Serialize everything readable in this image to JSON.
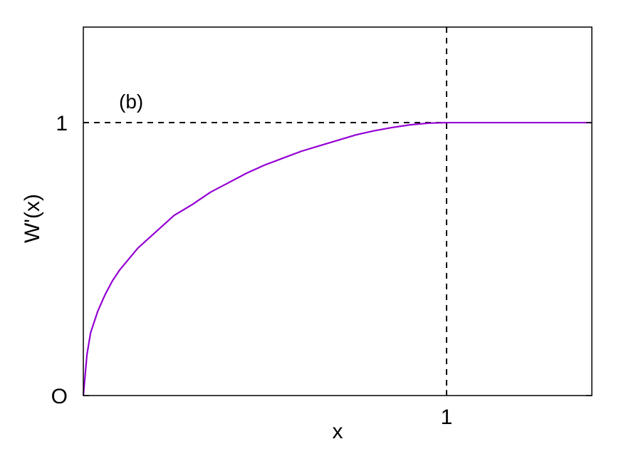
{
  "chart_data": {
    "type": "line",
    "title": "",
    "xlabel": "x",
    "ylabel": "W'(x)",
    "xlim": [
      0,
      1.4
    ],
    "ylim": [
      0,
      1.35
    ],
    "x_ticks": [
      {
        "value": 1,
        "label": "1"
      }
    ],
    "y_ticks": [
      {
        "value": 0,
        "label": "O"
      },
      {
        "value": 1,
        "label": "1"
      }
    ],
    "annotation": "(b)",
    "grid": false,
    "legend": "none",
    "reference_lines": [
      {
        "orientation": "horizontal",
        "value": 1,
        "style": "dashed",
        "color": "#000000"
      },
      {
        "orientation": "vertical",
        "value": 1,
        "style": "dashed",
        "color": "#000000"
      }
    ],
    "series": [
      {
        "color": "#9400d3",
        "x": [
          0,
          0.01,
          0.02,
          0.04,
          0.06,
          0.08,
          0.1,
          0.15,
          0.2,
          0.25,
          0.3,
          0.35,
          0.4,
          0.45,
          0.5,
          0.55,
          0.6,
          0.65,
          0.7,
          0.75,
          0.8,
          0.85,
          0.9,
          0.95,
          1.0,
          1.1,
          1.2,
          1.3,
          1.4
        ],
        "y": [
          0,
          0.15,
          0.23,
          0.31,
          0.37,
          0.42,
          0.46,
          0.54,
          0.6,
          0.66,
          0.7,
          0.745,
          0.78,
          0.815,
          0.845,
          0.87,
          0.895,
          0.915,
          0.935,
          0.955,
          0.97,
          0.982,
          0.992,
          0.998,
          1.0,
          1.0,
          1.0,
          1.0,
          1.0
        ]
      }
    ]
  }
}
